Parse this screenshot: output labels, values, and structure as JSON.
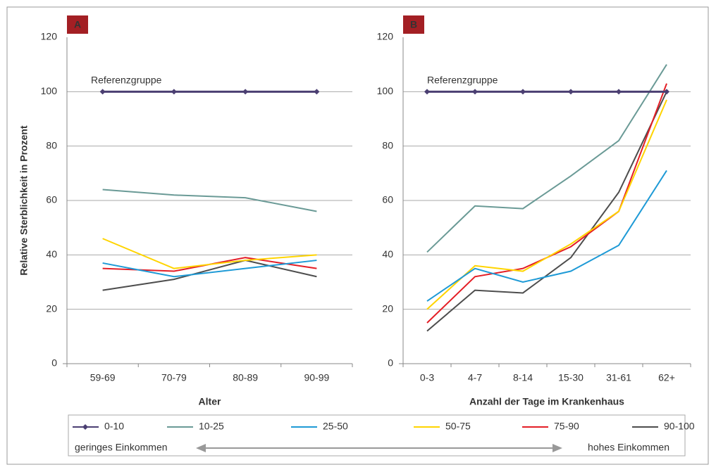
{
  "chart_data": [
    {
      "type": "line",
      "panel_label": "A",
      "x_label": "Alter",
      "y_label": "Relative Sterblichkeit in Prozent",
      "annotation": "Referenzgruppe",
      "categories": [
        "59-69",
        "70-79",
        "80-89",
        "90-99"
      ],
      "ylim": [
        0,
        120
      ],
      "yticks": [
        0,
        20,
        40,
        60,
        80,
        100,
        120
      ],
      "grid": true,
      "series": [
        {
          "name": "0-10",
          "color": "#4b3f72",
          "marker": "diamond",
          "values": [
            100,
            100,
            100,
            100
          ]
        },
        {
          "name": "10-25",
          "color": "#6a9a96",
          "values": [
            64,
            62,
            61,
            56
          ]
        },
        {
          "name": "25-50",
          "color": "#1e9ad6",
          "values": [
            37,
            32,
            35,
            38
          ]
        },
        {
          "name": "50-75",
          "color": "#ffd400",
          "values": [
            46,
            35,
            38,
            40
          ]
        },
        {
          "name": "75-90",
          "color": "#e41e26",
          "values": [
            35,
            34,
            39,
            35
          ]
        },
        {
          "name": "90-100",
          "color": "#4d4d4d",
          "values": [
            27,
            31,
            38,
            32
          ]
        }
      ]
    },
    {
      "type": "line",
      "panel_label": "B",
      "x_label": "Anzahl der Tage im Krankenhaus",
      "annotation": "Referenzgruppe",
      "categories": [
        "0-3",
        "4-7",
        "8-14",
        "15-30",
        "31-61",
        "62+"
      ],
      "ylim": [
        0,
        120
      ],
      "yticks": [
        0,
        20,
        40,
        60,
        80,
        100,
        120
      ],
      "grid": true,
      "series": [
        {
          "name": "0-10",
          "color": "#4b3f72",
          "marker": "diamond",
          "values": [
            100,
            100,
            100,
            100,
            100,
            100
          ]
        },
        {
          "name": "10-25",
          "color": "#6a9a96",
          "values": [
            41,
            58,
            57,
            69,
            82,
            110
          ]
        },
        {
          "name": "25-50",
          "color": "#1e9ad6",
          "values": [
            23,
            35,
            30,
            34,
            43.5,
            71
          ]
        },
        {
          "name": "50-75",
          "color": "#ffd400",
          "values": [
            20,
            36,
            34,
            44,
            56,
            97
          ]
        },
        {
          "name": "75-90",
          "color": "#e41e26",
          "values": [
            15,
            32,
            35,
            43,
            56,
            103
          ]
        },
        {
          "name": "90-100",
          "color": "#4d4d4d",
          "values": [
            12,
            27,
            26,
            39,
            63,
            100
          ]
        }
      ]
    }
  ],
  "legend": {
    "low_label": "geringes Einkommen",
    "high_label": "hohes Einkommen"
  }
}
